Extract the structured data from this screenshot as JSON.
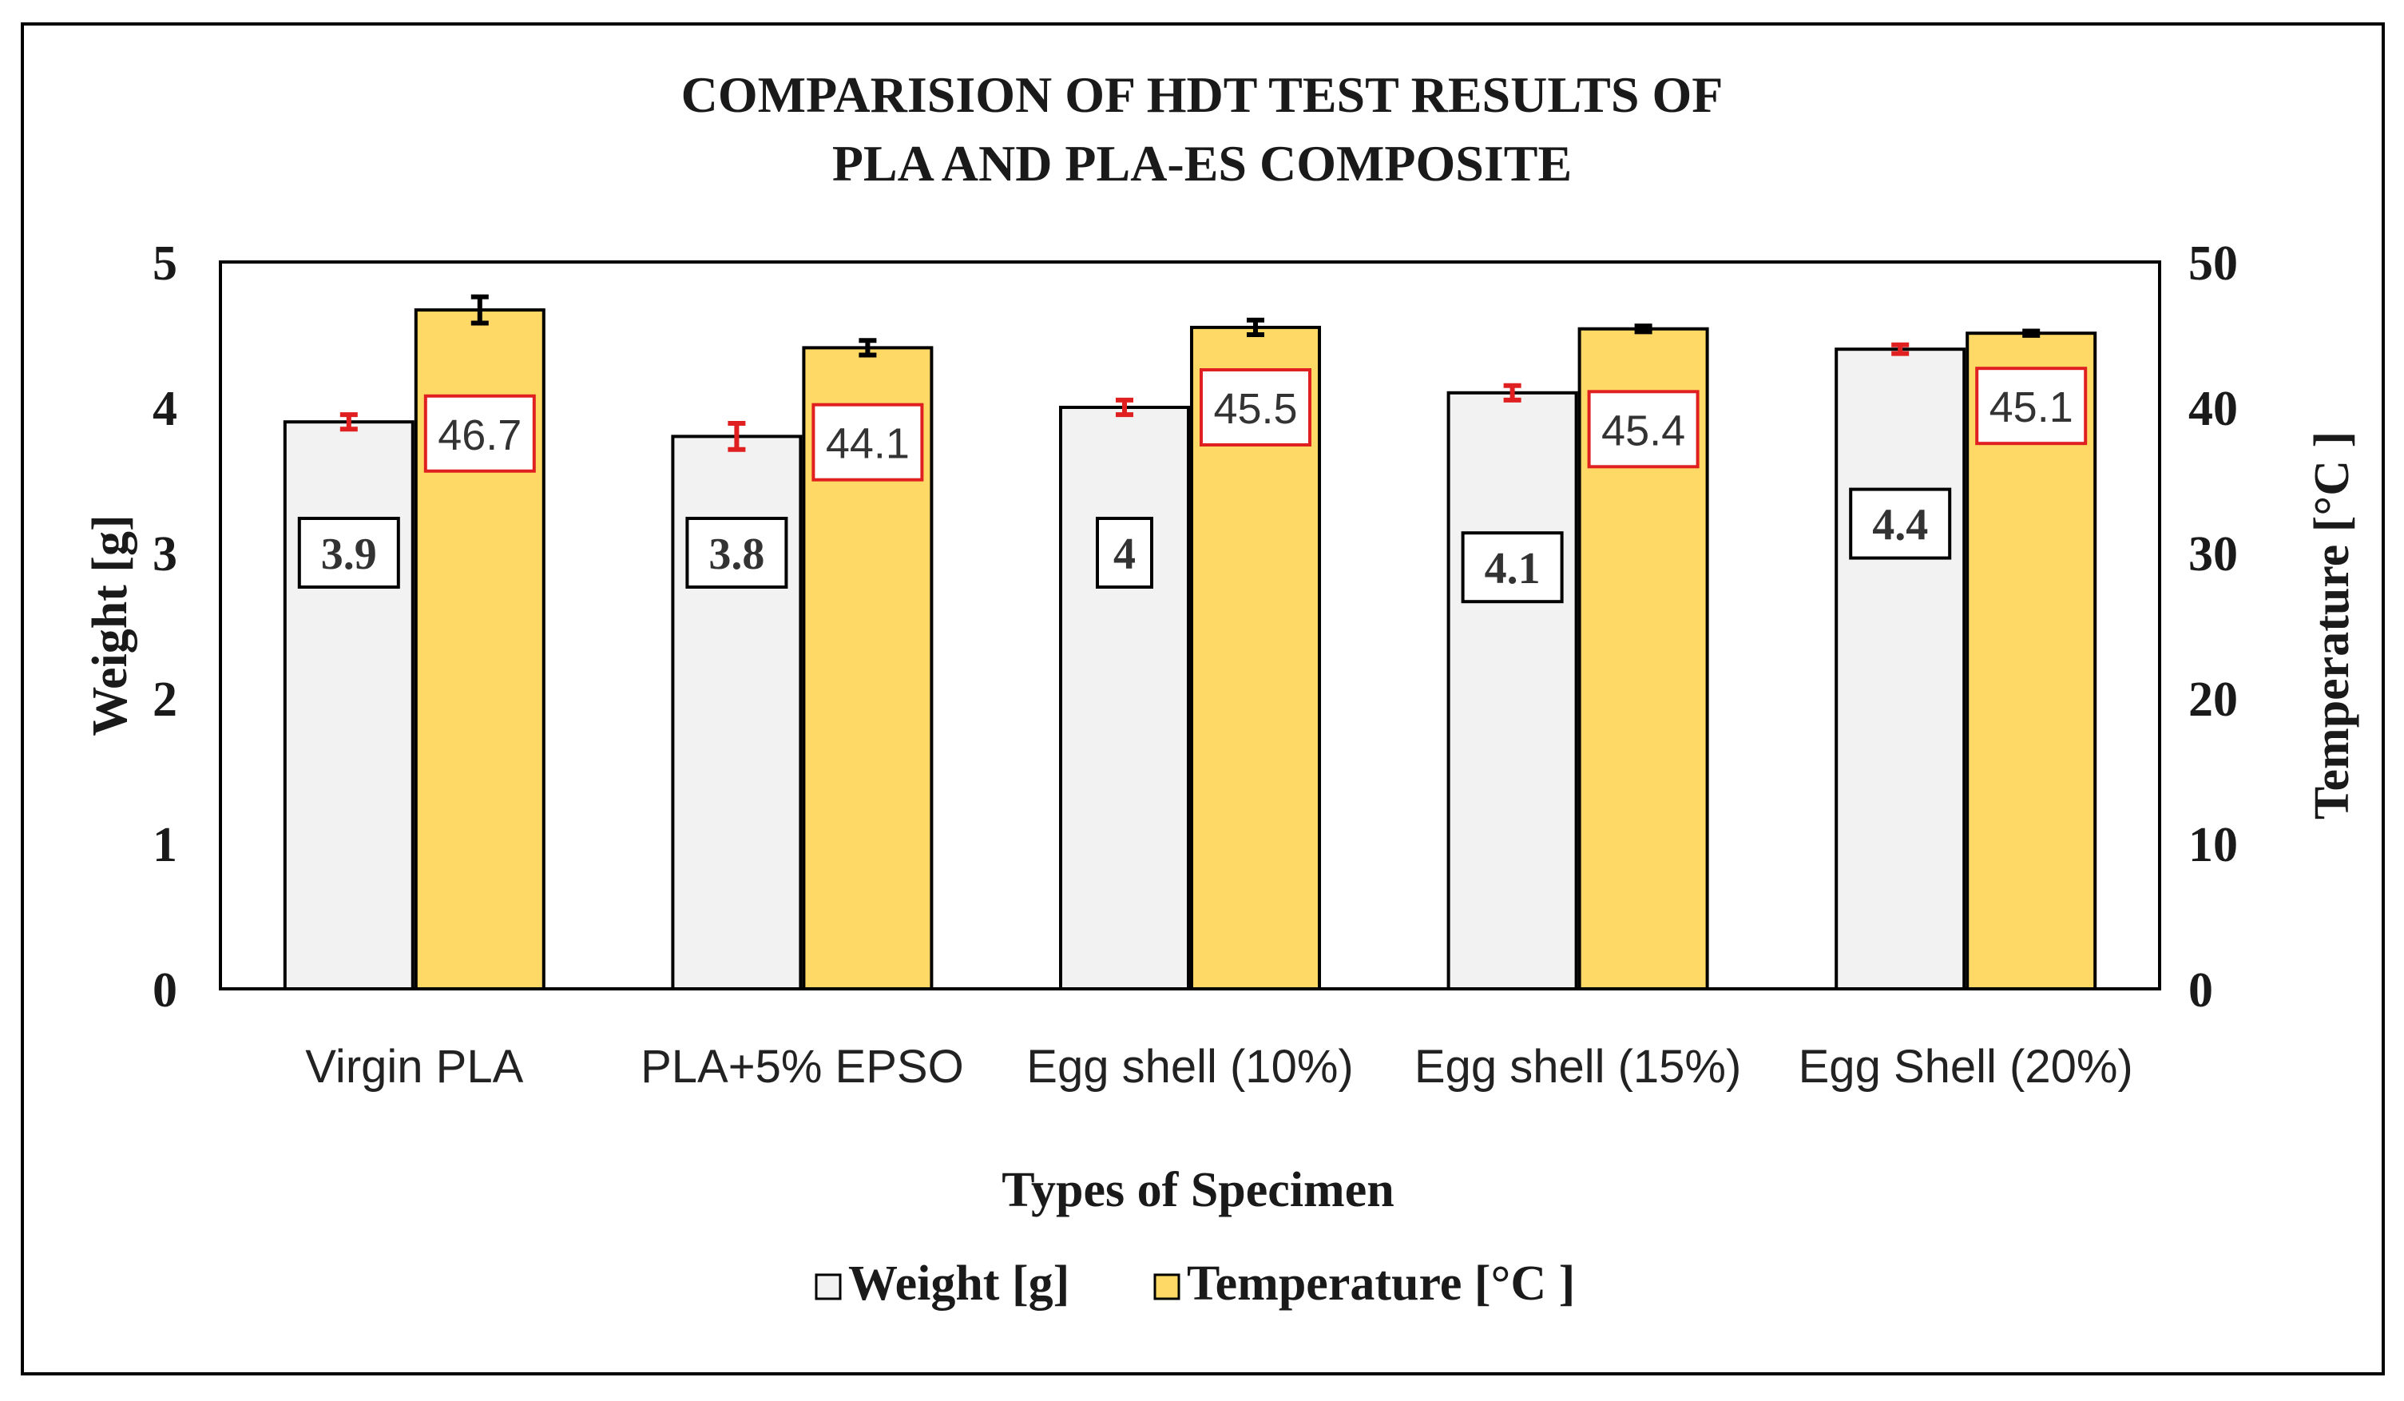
{
  "chart_data": {
    "type": "bar",
    "title_lines": [
      "COMPARISION OF HDT TEST RESULTS OF",
      "PLA  AND PLA-ES COMPOSITE"
    ],
    "xlabel": "Types of Specimen",
    "ylabel_left": "Weight  [g]",
    "ylabel_right": "Temperature [°C ]",
    "categories": [
      "Virgin PLA",
      "PLA+5% EPSO",
      "Egg shell (10%)",
      "Egg shell (15%)",
      "Egg Shell (20%)"
    ],
    "y_left": {
      "min": 0,
      "max": 5,
      "ticks": [
        0,
        1,
        2,
        3,
        4,
        5
      ]
    },
    "y_right": {
      "min": 0,
      "max": 50,
      "ticks": [
        0,
        10,
        20,
        30,
        40,
        50
      ]
    },
    "grid": false,
    "legend_placement": "bottom",
    "series": [
      {
        "name": "Weight [g]",
        "axis": "left",
        "color": "#f2f2f2",
        "error_color": "#e02020",
        "label_border_color": "#000000",
        "values": [
          3.9,
          3.8,
          4.0,
          4.1,
          4.4
        ],
        "errors": [
          0.05,
          0.09,
          0.05,
          0.05,
          0.03
        ],
        "labels": [
          "3.9",
          "3.8",
          "4",
          "4.1",
          "4.4"
        ],
        "label_y": [
          3.0,
          3.0,
          3.0,
          2.9,
          3.2
        ]
      },
      {
        "name": "Temperature [°C ]",
        "axis": "right",
        "color": "#ffd966",
        "error_color": "#000000",
        "label_border_color": "#e02020",
        "values": [
          46.7,
          44.1,
          45.5,
          45.4,
          45.1
        ],
        "errors": [
          0.9,
          0.5,
          0.5,
          0.2,
          0.15
        ],
        "labels": [
          "46.7",
          "44.1",
          "45.5",
          "45.4",
          "45.1"
        ],
        "label_y": [
          38.2,
          37.6,
          40.0,
          38.5,
          40.1
        ]
      }
    ]
  }
}
